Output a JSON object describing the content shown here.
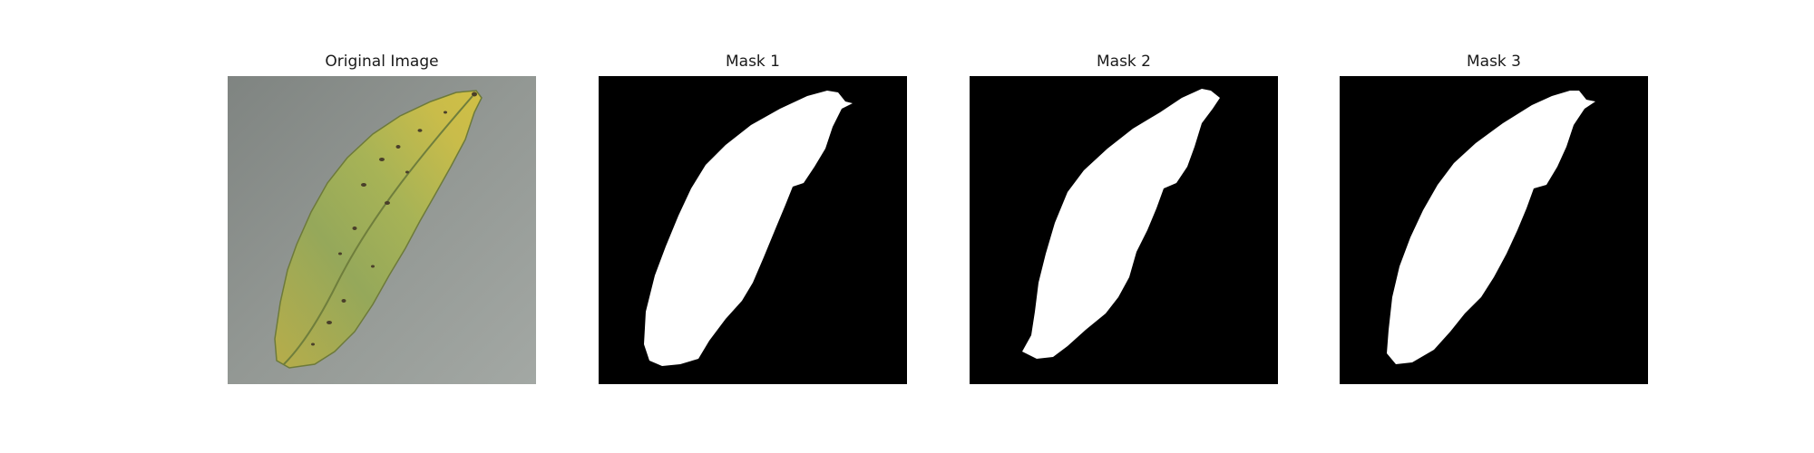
{
  "figure": {
    "panels": [
      {
        "title": "Original Image",
        "kind": "photo"
      },
      {
        "title": "Mask 1",
        "kind": "mask"
      },
      {
        "title": "Mask 2",
        "kind": "mask"
      },
      {
        "title": "Mask 3",
        "kind": "mask"
      }
    ]
  },
  "colors": {
    "background": "#8c918e",
    "leaf_green": "#9aab58",
    "leaf_yellow": "#c4b84e",
    "mask_foreground": "#ffffff",
    "mask_background": "#000000"
  }
}
